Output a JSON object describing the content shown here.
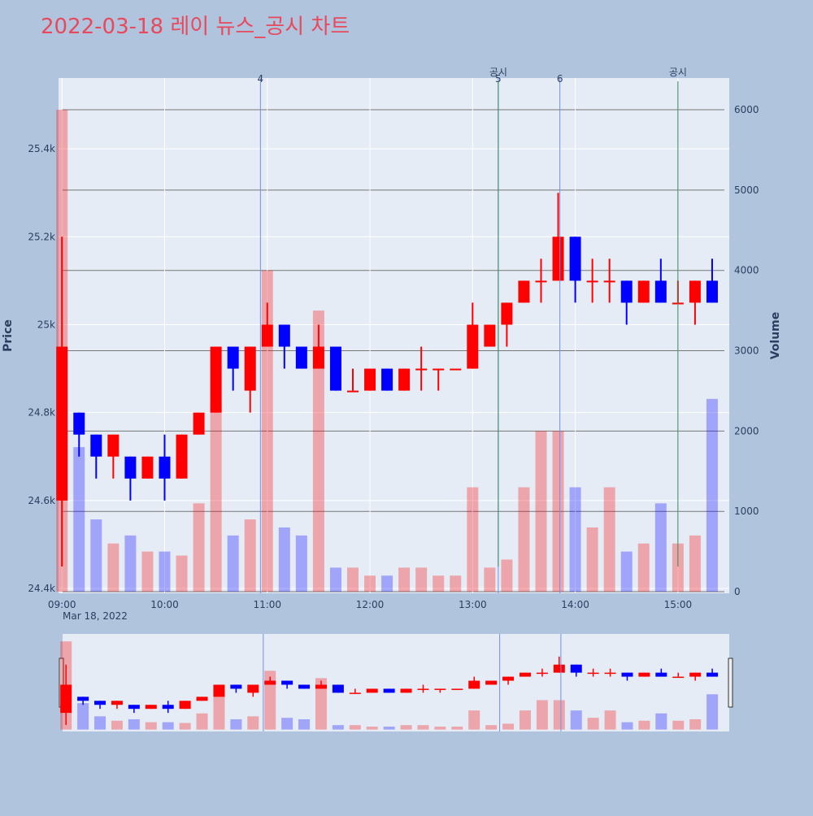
{
  "chart_data": {
    "type": "candlestick",
    "title": "2022-03-18 레이 뉴스_공시 차트",
    "x_date_label": "Mar 18, 2022",
    "y_label": "Price",
    "y2_label": "Volume",
    "increasing_color": "#ff0000",
    "decreasing_color": "#0000ff",
    "x": [
      "09:00",
      "09:10",
      "09:20",
      "09:30",
      "09:40",
      "09:50",
      "10:00",
      "10:10",
      "10:20",
      "10:30",
      "10:40",
      "10:50",
      "11:00",
      "11:10",
      "11:20",
      "11:30",
      "11:40",
      "11:50",
      "12:00",
      "12:10",
      "12:20",
      "12:30",
      "12:40",
      "12:50",
      "13:00",
      "13:10",
      "13:20",
      "13:30",
      "13:40",
      "13:50",
      "14:00",
      "14:10",
      "14:20",
      "14:30",
      "14:40",
      "14:50",
      "15:00",
      "15:10",
      "15:20"
    ],
    "open": [
      24600,
      24800,
      24750,
      24700,
      24700,
      24650,
      24700,
      24650,
      24750,
      24800,
      24950,
      24850,
      24950,
      25000,
      24950,
      24900,
      24950,
      24850,
      24850,
      24900,
      24850,
      24900,
      24900,
      24900,
      24900,
      24950,
      25000,
      25050,
      25100,
      25100,
      25200,
      25100,
      25100,
      25100,
      25050,
      25100,
      25050,
      25050,
      25100
    ],
    "high": [
      25200,
      24800,
      24750,
      24750,
      24700,
      24700,
      24750,
      24750,
      24800,
      24950,
      24950,
      24950,
      25050,
      25000,
      24950,
      25000,
      24950,
      24900,
      24900,
      24900,
      24900,
      24950,
      24900,
      24900,
      25050,
      25000,
      25050,
      25100,
      25150,
      25300,
      25200,
      25150,
      25150,
      25100,
      25100,
      25150,
      25100,
      25100,
      25150
    ],
    "low": [
      24450,
      24700,
      24650,
      24650,
      24600,
      24650,
      24600,
      24650,
      24750,
      24800,
      24850,
      24800,
      24950,
      24900,
      24900,
      24900,
      24850,
      24850,
      24850,
      24850,
      24850,
      24850,
      24850,
      24900,
      24900,
      24950,
      24950,
      25050,
      25050,
      25100,
      25050,
      25050,
      25050,
      25000,
      25050,
      25050,
      25050,
      25000,
      25050
    ],
    "close": [
      24950,
      24750,
      24700,
      24750,
      24650,
      24700,
      24650,
      24750,
      24800,
      24950,
      24900,
      24950,
      25000,
      24950,
      24900,
      24950,
      24850,
      24850,
      24900,
      24850,
      24900,
      24900,
      24900,
      24900,
      25000,
      25000,
      25050,
      25100,
      25100,
      25200,
      25100,
      25100,
      25100,
      25050,
      25100,
      25050,
      25050,
      25100,
      25050
    ],
    "volume": [
      6000,
      1800,
      900,
      600,
      700,
      500,
      500,
      450,
      1100,
      2400,
      700,
      900,
      4000,
      800,
      700,
      3500,
      300,
      300,
      200,
      200,
      300,
      300,
      200,
      200,
      1300,
      300,
      400,
      1300,
      2000,
      2000,
      1300,
      800,
      1300,
      500,
      600,
      1100,
      600,
      700,
      2400
    ],
    "xlim": [
      "08:58",
      "15:30"
    ],
    "xticks": [
      "09:00",
      "10:00",
      "11:00",
      "12:00",
      "13:00",
      "14:00",
      "15:00"
    ],
    "ylim": [
      24389,
      25561
    ],
    "yticks": [
      {
        "value": 24400,
        "label": "24.4k"
      },
      {
        "value": 24600,
        "label": "24.6k"
      },
      {
        "value": 24800,
        "label": "24.8k"
      },
      {
        "value": 25000,
        "label": "25k"
      },
      {
        "value": 25200,
        "label": "25.2k"
      },
      {
        "value": 25400,
        "label": "25.4k"
      }
    ],
    "y2lim": [
      -20,
      6395
    ],
    "y2ticks": [
      0,
      1000,
      2000,
      3000,
      4000,
      5000,
      6000
    ],
    "news_lines": [
      {
        "x": "10:56",
        "label": "4"
      },
      {
        "x": "13:15",
        "label": "5"
      },
      {
        "x": "13:51",
        "label": "6"
      }
    ],
    "disclosure_lines": [
      {
        "x": "13:15",
        "label": "공시"
      },
      {
        "x": "15:00",
        "label": "공시"
      }
    ]
  }
}
